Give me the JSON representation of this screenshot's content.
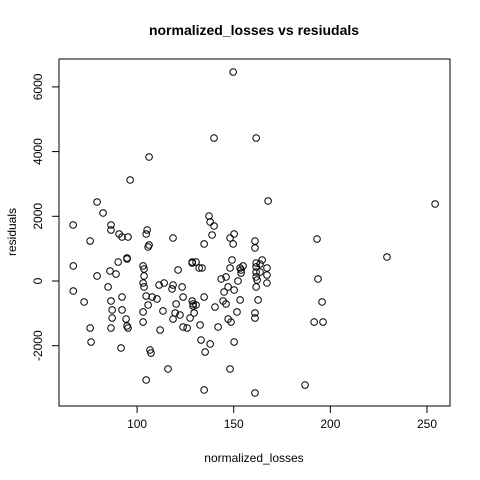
{
  "chart_data": {
    "type": "scatter",
    "title": "normalized_losses  vs resiudals",
    "x_label": "normalized_losses",
    "y_label": "residuals",
    "color": "#000000",
    "xlim": [
      59.6,
      261.9
    ],
    "ylim": [
      -3864,
      6862
    ],
    "xticks": [
      100,
      150,
      200,
      250
    ],
    "yticks": [
      -2000,
      0,
      2000,
      4000,
      6000
    ],
    "x": [
      66.9,
      67,
      67,
      75.7,
      76.2,
      79.3,
      82.4,
      86.5,
      86.5,
      90.7,
      92.2,
      95.3,
      94.8,
      94.8,
      90.2,
      89.1,
      86,
      79.3,
      85,
      86.5,
      92.2,
      72.6,
      75.7,
      87.1,
      86.5,
      87.1,
      92.2,
      94.3,
      94.8,
      95.3,
      91.7,
      96.4,
      103.6,
      105.2,
      104.7,
      105.7,
      106.2,
      103.1,
      103.6,
      103.1,
      103.6,
      104.7,
      107.8,
      105.7,
      103.1,
      103.1,
      106.7,
      107.2,
      104.7,
      116,
      106.2,
      110.3,
      111.4,
      114,
      118.6,
      118.6,
      121.2,
      123.3,
      123.8,
      120.2,
      119.7,
      118.6,
      122.2,
      123.8,
      125.9,
      128.5,
      128.5,
      132.1,
      133.6,
      129,
      129,
      128.5,
      130.5,
      129.5,
      134.7,
      132.6,
      133.1,
      137.8,
      135.2,
      134.7,
      137.2,
      137.8,
      139.8,
      138.8,
      134.7,
      130.5,
      143.5,
      146,
      148.1,
      149.1,
      149.7,
      150.2,
      148.1,
      152.2,
      153.8,
      153.3,
      153.8,
      154.8,
      153.3,
      151.7,
      148.6,
      150.2,
      148.1,
      141.9,
      147.1,
      146,
      144.5,
      147.1,
      150.2,
      139.8,
      149.7,
      161,
      161,
      161.6,
      161.6,
      161.6,
      161.6,
      161.6,
      162.6,
      161,
      161,
      162.1,
      163.6,
      164.7,
      161,
      161.6,
      163.6,
      167.2,
      167.2,
      167.2,
      167.8,
      186.9,
      193.1,
      191.6,
      193.6,
      195.7,
      196.2,
      229.3,
      254.2,
      118.1,
      113.4,
      111.9,
      145,
      140.3,
      127.4
    ],
    "y": [
      1731,
      464,
      -309,
      1236,
      -1886,
      2442,
      2102,
      1731,
      1576,
      1453,
      1360,
      1360,
      680,
      711,
      587,
      216,
      309,
      155,
      -185,
      -618,
      -495,
      -649,
      -1453,
      -1144,
      -1453,
      -896,
      -896,
      -1175,
      -1391,
      -1453,
      -2071,
      3122,
      371,
      1576,
      1453,
      1051,
      1113,
      464,
      155,
      -62,
      -185,
      -464,
      -495,
      -742,
      -958,
      -1268,
      -2133,
      -2226,
      -3060,
      -2720,
      3833,
      -556,
      -124,
      -62,
      -124,
      1329,
      340,
      -185,
      -495,
      -711,
      -989,
      -1175,
      -1051,
      -1422,
      -1453,
      556,
      587,
      402,
      402,
      -711,
      -773,
      -618,
      -742,
      -989,
      -495,
      -1360,
      -1824,
      -1947,
      -2195,
      -3369,
      2009,
      1824,
      1700,
      1422,
      1144,
      587,
      62,
      124,
      402,
      649,
      1144,
      1453,
      1329,
      0,
      247,
      402,
      340,
      464,
      -587,
      -958,
      -1268,
      -1886,
      -2720,
      -1422,
      -1175,
      -711,
      -618,
      -185,
      -278,
      4420,
      6460,
      1236,
      1020,
      556,
      433,
      278,
      124,
      -185,
      -587,
      -989,
      -1144,
      31,
      525,
      649,
      -3462,
      4420,
      278,
      402,
      185,
      -62,
      2473,
      -3215,
      1298,
      -1268,
      62,
      -649,
      -1268,
      742,
      2380,
      -247,
      -927,
      -1515,
      -340,
      -804,
      -1144
    ]
  }
}
